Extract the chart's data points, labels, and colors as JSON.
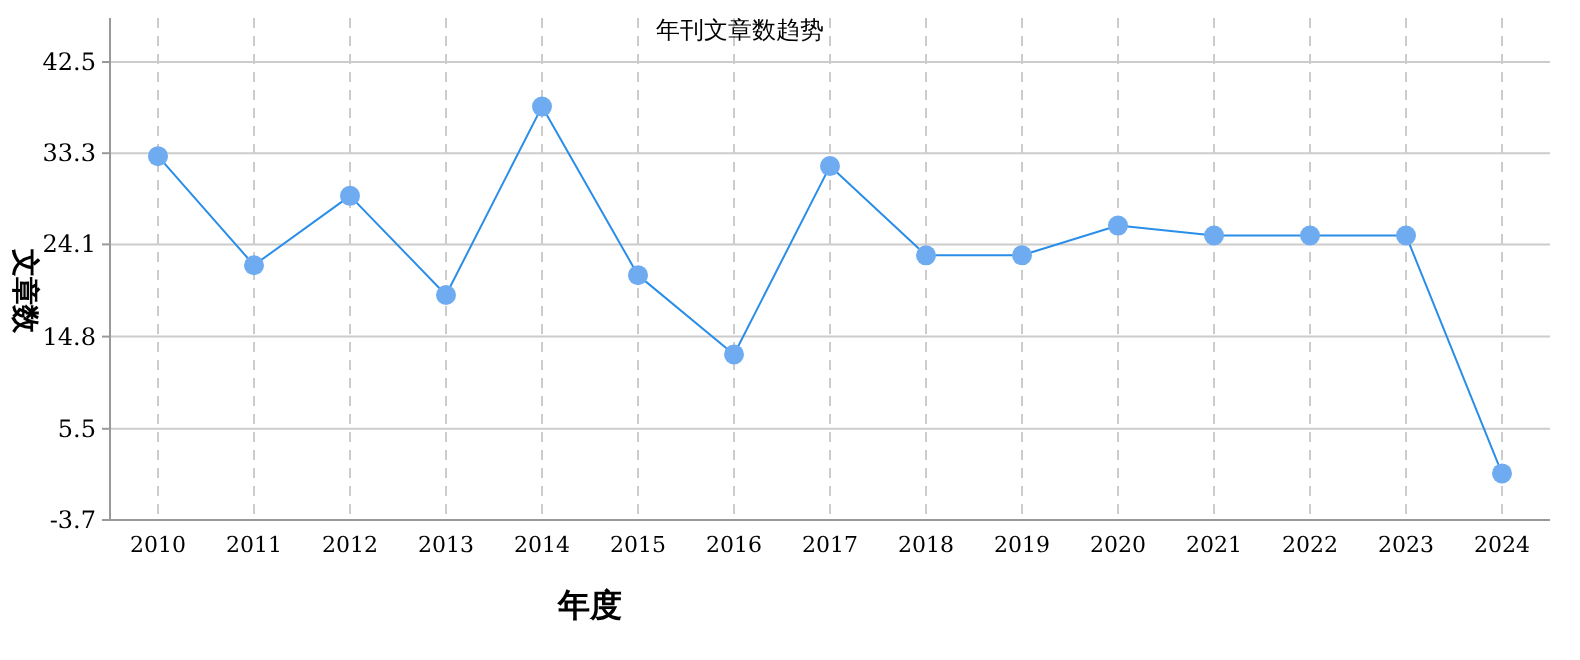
{
  "chart_data": {
    "type": "line",
    "title": "年刊文章数趋势",
    "xlabel": "年度",
    "ylabel": "文章数",
    "categories": [
      "2010",
      "2011",
      "2012",
      "2013",
      "2014",
      "2015",
      "2016",
      "2017",
      "2018",
      "2019",
      "2020",
      "2021",
      "2022",
      "2023",
      "2024"
    ],
    "series": [
      {
        "color": "#2a8ee8",
        "values": [
          33,
          22,
          29,
          19,
          38,
          21,
          13,
          32,
          23,
          23,
          26,
          25,
          25,
          25,
          1
        ]
      }
    ],
    "ylim": [
      -3.7,
      42.5
    ],
    "yticks": [
      -3.7,
      5.5,
      14.8,
      24.1,
      33.3,
      42.5
    ],
    "grid": true,
    "marker": "circle",
    "line_style": "solid"
  }
}
